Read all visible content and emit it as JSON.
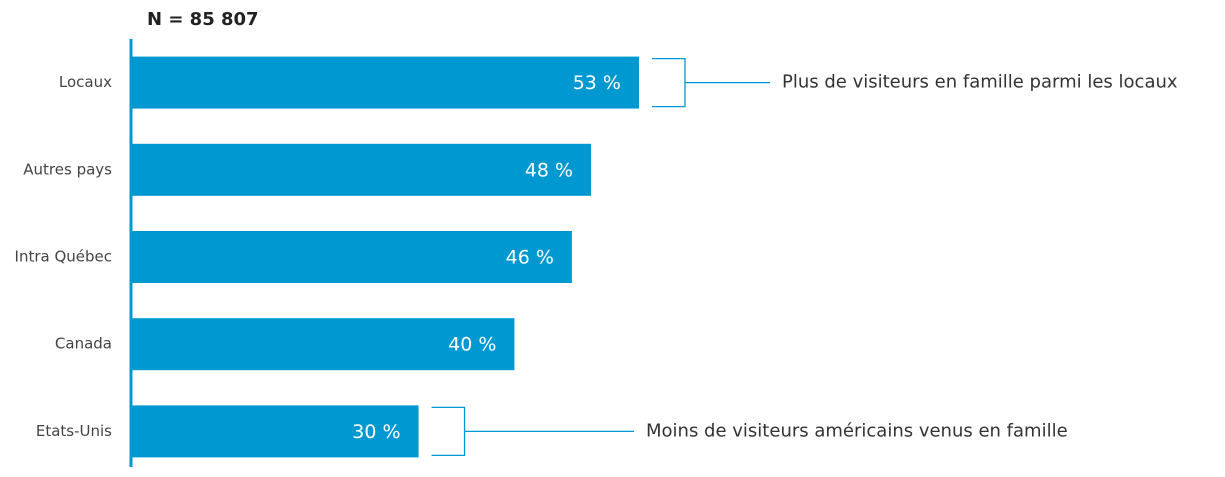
{
  "chart_data": {
    "type": "bar",
    "orientation": "horizontal",
    "title": "N = 85 807",
    "categories": [
      "Locaux",
      "Autres pays",
      "Intra Québec",
      "Canada",
      "Etats-Unis"
    ],
    "values": [
      53,
      48,
      46,
      40,
      30
    ],
    "value_labels": [
      "53 %",
      "48 %",
      "46 %",
      "40 %",
      "30 %"
    ],
    "color": "#0098d1",
    "annotations": [
      "Plus de visiteurs en famille parmi les locaux",
      "Moins de visiteurs américains venus en famille"
    ]
  }
}
